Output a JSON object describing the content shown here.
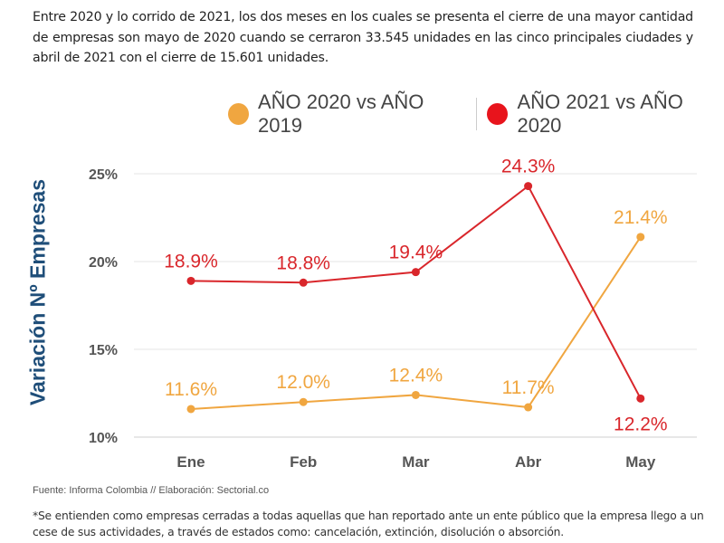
{
  "intro_text": "Entre 2020 y lo corrido de 2021, los dos meses en los cuales se presenta el cierre de una mayor cantidad de empresas son mayo de 2020 cuando se cerraron 33.545 unidades en las cinco principales ciudades y abril de 2021 con el cierre de 15.601 unidades.",
  "source": "Fuente: Informa Colombia // Elaboración: Sectorial.co",
  "footnote": "*Se entienden como empresas cerradas a todas aquellas que han reportado ante un ente público que la empresa llego a un cese de sus actividades, a través de estados como: cancelación, extinción, disolución o absorción.",
  "chart_data": {
    "type": "line",
    "title": "",
    "xlabel": "",
    "ylabel": "Variación Nº Empresas",
    "categories": [
      "Ene",
      "Feb",
      "Mar",
      "Abr",
      "May"
    ],
    "ylim": [
      10,
      25
    ],
    "yticks": [
      "10%",
      "15%",
      "20%",
      "25%"
    ],
    "ytick_values": [
      10,
      15,
      20,
      25
    ],
    "grid": true,
    "legend_position": "top-right",
    "series": [
      {
        "name": "AÑO 2020 vs AÑO 2019",
        "color": "#f0a640",
        "values": [
          11.6,
          12.0,
          12.4,
          11.7,
          21.4
        ],
        "labels": [
          "11.6%",
          "12.0%",
          "12.4%",
          "11.7%",
          "21.4%"
        ]
      },
      {
        "name": "AÑO 2021 vs AÑO 2020",
        "color": "#d9262b",
        "values": [
          18.9,
          18.8,
          19.4,
          24.3,
          12.2
        ],
        "labels": [
          "18.9%",
          "18.8%",
          "19.4%",
          "24.3%",
          "12.2%"
        ]
      }
    ]
  }
}
